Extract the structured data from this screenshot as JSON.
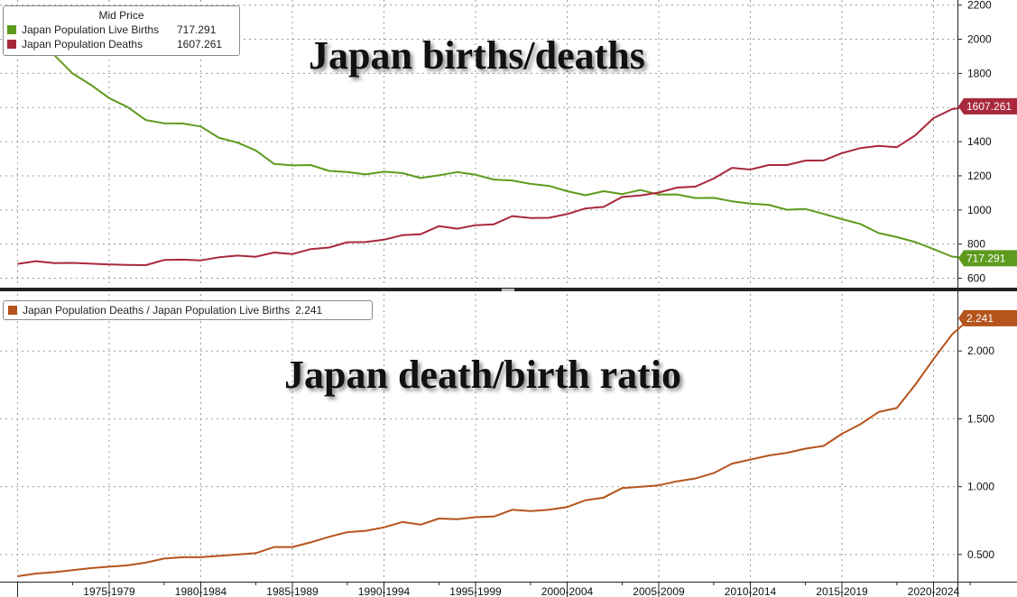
{
  "chart_data": [
    {
      "type": "line",
      "title": "Japan births/deaths",
      "legend_header": "Mid Price",
      "legend_placement": "top-left",
      "grid": true,
      "ylim": [
        550,
        2230
      ],
      "yticks": [
        600,
        800,
        1000,
        1200,
        1400,
        1600,
        1800,
        2000,
        2200
      ],
      "x_start_year": 1972,
      "x": [
        1972,
        1973,
        1974,
        1975,
        1976,
        1977,
        1978,
        1979,
        1980,
        1981,
        1982,
        1983,
        1984,
        1985,
        1986,
        1987,
        1988,
        1989,
        1990,
        1991,
        1992,
        1993,
        1994,
        1995,
        1996,
        1997,
        1998,
        1999,
        2000,
        2001,
        2002,
        2003,
        2004,
        2005,
        2006,
        2007,
        2008,
        2009,
        2010,
        2011,
        2012,
        2013,
        2014,
        2015,
        2016,
        2017,
        2018,
        2019,
        2020,
        2021,
        2022,
        2023,
        2024
      ],
      "series": [
        {
          "name": "Japan Population Live Births",
          "last_label": "717.291",
          "color": "#5e9a1e",
          "values": [
            2039,
            1965,
            1907,
            1800,
            1733,
            1655,
            1603,
            1527,
            1508,
            1507,
            1489,
            1422,
            1395,
            1349,
            1270,
            1261,
            1263,
            1229,
            1222,
            1208,
            1224,
            1216,
            1187,
            1203,
            1222,
            1206,
            1178,
            1173,
            1153,
            1141,
            1110,
            1086,
            1110,
            1093,
            1117,
            1090,
            1091,
            1070,
            1071,
            1051,
            1037,
            1030,
            1001,
            1006,
            977,
            946,
            918,
            865,
            841,
            812,
            771,
            727,
            717
          ]
        },
        {
          "name": "Japan Population Deaths",
          "last_label": "1607.261",
          "color": "#a8283c",
          "values": [
            684,
            700,
            689,
            690,
            685,
            681,
            678,
            677,
            707,
            709,
            705,
            723,
            733,
            726,
            751,
            742,
            771,
            780,
            811,
            812,
            826,
            852,
            858,
            905,
            890,
            911,
            916,
            964,
            953,
            954,
            976,
            1009,
            1018,
            1076,
            1085,
            1102,
            1131,
            1137,
            1184,
            1247,
            1237,
            1263,
            1263,
            1289,
            1290,
            1333,
            1362,
            1376,
            1368,
            1437,
            1538,
            1590,
            1607
          ]
        }
      ]
    },
    {
      "type": "line",
      "title": "Japan death/birth ratio",
      "legend_placement": "top-left",
      "grid": true,
      "ylim": [
        0.3,
        2.42
      ],
      "yticks": [
        0.5,
        1.0,
        1.5,
        2.0
      ],
      "ytick_labels": [
        "0.500",
        "1.000",
        "1.500",
        "2.000"
      ],
      "x": [
        1972,
        1973,
        1974,
        1975,
        1976,
        1977,
        1978,
        1979,
        1980,
        1981,
        1982,
        1983,
        1984,
        1985,
        1986,
        1987,
        1988,
        1989,
        1990,
        1991,
        1992,
        1993,
        1994,
        1995,
        1996,
        1997,
        1998,
        1999,
        2000,
        2001,
        2002,
        2003,
        2004,
        2005,
        2006,
        2007,
        2008,
        2009,
        2010,
        2011,
        2012,
        2013,
        2014,
        2015,
        2016,
        2017,
        2018,
        2019,
        2020,
        2021,
        2022,
        2023,
        2024
      ],
      "series": [
        {
          "name": "Japan Population Deaths / Japan Population Live Births",
          "last_label": "2.241",
          "color": "#b5541c",
          "values": [
            0.34,
            0.36,
            0.37,
            0.385,
            0.4,
            0.41,
            0.42,
            0.44,
            0.47,
            0.48,
            0.48,
            0.49,
            0.5,
            0.51,
            0.555,
            0.555,
            0.59,
            0.63,
            0.665,
            0.675,
            0.7,
            0.74,
            0.72,
            0.765,
            0.76,
            0.775,
            0.78,
            0.83,
            0.82,
            0.83,
            0.85,
            0.9,
            0.92,
            0.99,
            1.0,
            1.01,
            1.04,
            1.06,
            1.1,
            1.17,
            1.2,
            1.23,
            1.25,
            1.28,
            1.3,
            1.39,
            1.46,
            1.55,
            1.58,
            1.75,
            1.94,
            2.12,
            2.241
          ]
        }
      ]
    }
  ],
  "x_axis": {
    "labels": [
      "1975-1979",
      "1980-1984",
      "1985-1989",
      "1990-1994",
      "1995-1999",
      "2000-2004",
      "2005-2009",
      "2010-2014",
      "2015-2019",
      "2020-2024"
    ]
  }
}
